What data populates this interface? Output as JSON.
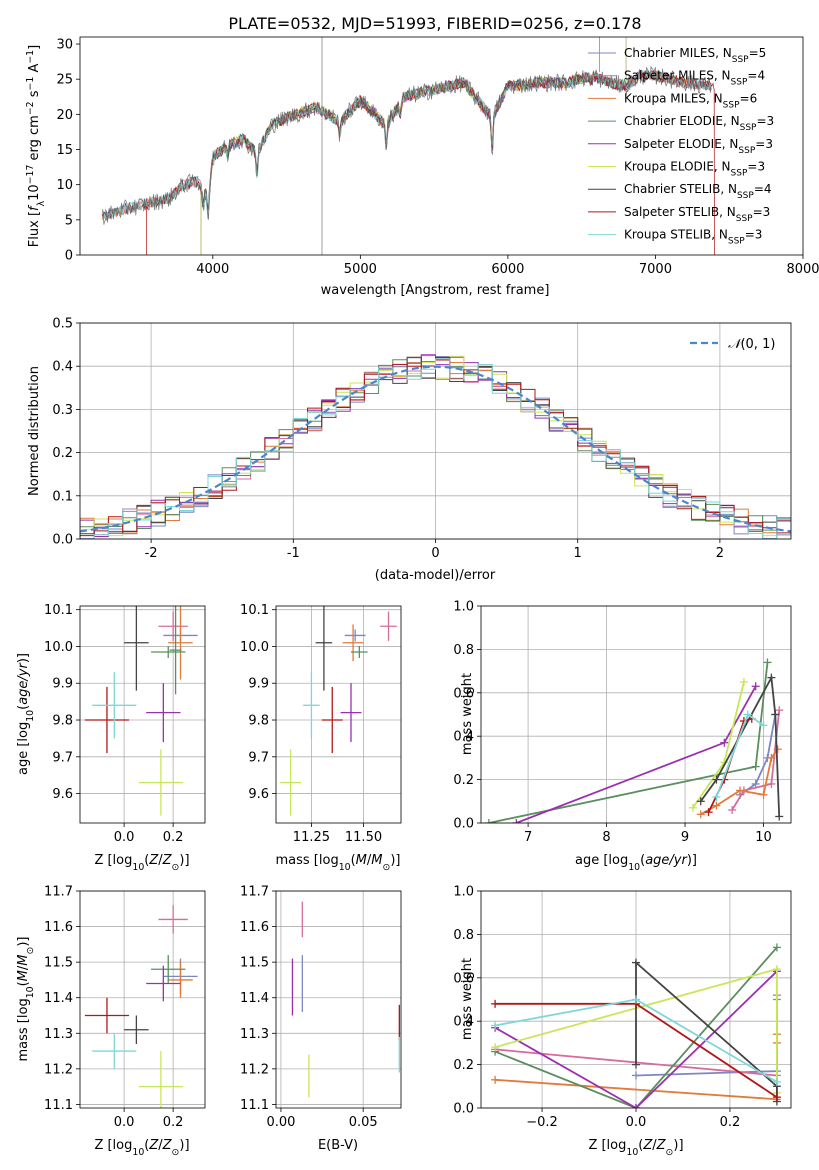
{
  "title": "PLATE=0532, MJD=51993, FIBERID=0256, z=0.178",
  "colors": {
    "Chabrier MILES": "#7b88c4",
    "Salpeter MILES": "#d66c9c",
    "Kroupa MILES": "#e07b39",
    "Chabrier ELODIE": "#5b8f5f",
    "Salpeter ELODIE": "#9a30b0",
    "Kroupa ELODIE": "#c8e65a",
    "Chabrier STELIB": "#444444",
    "Salpeter STELIB": "#b01818",
    "Kroupa STELIB": "#7fd6d6",
    "data": "#666666",
    "normal": "#4a86d0"
  },
  "chart_data": [
    {
      "type": "line",
      "xlabel": "wavelength [Angstrom, rest frame]",
      "ylabel": "Flux [f_λ10^-17 erg cm^-2 s^-1 A^-1]",
      "xlim": [
        3100,
        8000
      ],
      "ylim": [
        0,
        31
      ],
      "xticks": [
        4000,
        5000,
        6000,
        7000,
        8000
      ],
      "yticks": [
        0,
        5,
        10,
        15,
        20,
        25,
        30
      ],
      "grid": false,
      "legend_position": "right",
      "legend": [
        {
          "label": "Chabrier MILES, N_SSP=5",
          "base": "Chabrier MILES, N",
          "sub": "SSP",
          "tail": "=5"
        },
        {
          "label": "Salpeter MILES, N_SSP=4",
          "base": "Salpeter MILES, N",
          "sub": "SSP",
          "tail": "=4"
        },
        {
          "label": "Kroupa MILES, N_SSP=6",
          "base": "Kroupa MILES, N",
          "sub": "SSP",
          "tail": "=6"
        },
        {
          "label": "Chabrier ELODIE, N_SSP=3",
          "base": "Chabrier ELODIE, N",
          "sub": "SSP",
          "tail": "=3"
        },
        {
          "label": "Salpeter ELODIE, N_SSP=3",
          "base": "Salpeter ELODIE, N",
          "sub": "SSP",
          "tail": "=3"
        },
        {
          "label": "Kroupa ELODIE, N_SSP=3",
          "base": "Kroupa ELODIE, N",
          "sub": "SSP",
          "tail": "=3"
        },
        {
          "label": "Chabrier STELIB, N_SSP=4",
          "base": "Chabrier STELIB, N",
          "sub": "SSP",
          "tail": "=4"
        },
        {
          "label": "Salpeter STELIB, N_SSP=3",
          "base": "Salpeter STELIB, N",
          "sub": "SSP",
          "tail": "=3"
        },
        {
          "label": "Kroupa STELIB, N_SSP=3",
          "base": "Kroupa STELIB, N",
          "sub": "SSP",
          "tail": "=3"
        }
      ],
      "spectrum_anchor_points": {
        "x": [
          3250,
          3400,
          3500,
          3600,
          3700,
          3800,
          3900,
          3970,
          4000,
          4100,
          4200,
          4300,
          4400,
          4500,
          4700,
          4861,
          5000,
          5175,
          5300,
          5500,
          5700,
          5893,
          6000,
          6200,
          6400,
          6563,
          6700,
          6800,
          6900,
          7000,
          7200,
          7400
        ],
        "y": [
          5.5,
          6.5,
          7,
          7.5,
          8,
          10,
          10.5,
          8,
          14,
          15.5,
          16.5,
          14.5,
          18.5,
          19.5,
          21,
          19,
          22,
          18.5,
          22.5,
          23.5,
          24.5,
          19.5,
          24,
          24.5,
          24.5,
          25.5,
          24.5,
          24,
          25.5,
          25.5,
          24.5,
          24
        ]
      },
      "model_cutoffs": {
        "Salpeter STELIB": [
          3550,
          7400
        ],
        "Kroupa ELODIE": [
          3920,
          6800
        ],
        "Chabrier ELODIE": [
          3920,
          6800
        ],
        "Salpeter ELODIE": [
          3920,
          6800
        ],
        "Chabrier STELIB": [
          3250,
          7380
        ],
        "Kroupa STELIB": [
          3250,
          7380
        ]
      }
    },
    {
      "type": "histogram",
      "xlabel": "(data-model)/error",
      "ylabel": "Normed distribution",
      "xlim": [
        -2.5,
        2.5
      ],
      "ylim": [
        0,
        0.5
      ],
      "xticks": [
        -2,
        -1,
        0,
        1,
        2
      ],
      "yticks": [
        0.0,
        0.1,
        0.2,
        0.3,
        0.4,
        0.5
      ],
      "grid": true,
      "legend": [
        "N(0,1)"
      ],
      "legend_position": "top-right",
      "bin_width": 0.1,
      "curve": "normal(0,1)"
    },
    {
      "type": "scatter",
      "xlabel": "Z [log10(Z/Z_sun)]",
      "ylabel": "age [log10(age/yr)]",
      "xlim": [
        -0.18,
        0.33
      ],
      "ylim": [
        9.52,
        10.11
      ],
      "xticks": [
        0.0,
        0.2
      ],
      "yticks": [
        9.6,
        9.7,
        9.8,
        9.9,
        10.0,
        10.1
      ],
      "grid": true,
      "points": [
        {
          "series": "Chabrier MILES",
          "x": 0.23,
          "y": 10.03,
          "dx": 0.07,
          "dy": 0.0
        },
        {
          "series": "Salpeter MILES",
          "x": 0.2,
          "y": 10.055,
          "dx": 0.06,
          "dy": 0.04
        },
        {
          "series": "Kroupa MILES",
          "x": 0.23,
          "y": 10.01,
          "dx": 0.05,
          "dy": 0.1
        },
        {
          "series": "Chabrier ELODIE",
          "x": 0.18,
          "y": 9.985,
          "dx": 0.07,
          "dy": 0.0
        },
        {
          "series": "Salpeter ELODIE",
          "x": 0.16,
          "y": 9.82,
          "dx": 0.07,
          "dy": 0.08
        },
        {
          "series": "Kroupa ELODIE",
          "x": 0.15,
          "y": 9.63,
          "dx": 0.09,
          "dy": 0.09
        },
        {
          "series": "Chabrier STELIB",
          "x": 0.05,
          "y": 10.01,
          "dx": 0.05,
          "dy": 0.13
        },
        {
          "series": "Salpeter STELIB",
          "x": -0.07,
          "y": 9.8,
          "dx": 0.09,
          "dy": 0.09
        },
        {
          "series": "Kroupa STELIB",
          "x": -0.04,
          "y": 9.84,
          "dx": 0.09,
          "dy": 0.09
        },
        {
          "series": "Chabrier ELODIE",
          "x": 0.21,
          "y": 9.99,
          "dx": 0.0,
          "dy": 0.12
        }
      ]
    },
    {
      "type": "scatter",
      "xlabel": "mass [log10(M/M_sun)]",
      "xlim": [
        11.08,
        11.68
      ],
      "ylim": [
        9.52,
        10.11
      ],
      "xticks": [
        11.25,
        11.5
      ],
      "yticks": [
        9.6,
        9.7,
        9.8,
        9.9,
        10.0,
        10.1
      ],
      "grid": true,
      "points": [
        {
          "series": "Chabrier MILES",
          "x": 11.46,
          "y": 10.03,
          "dx": 0.05,
          "dy": 0.0
        },
        {
          "series": "Salpeter MILES",
          "x": 11.62,
          "y": 10.055,
          "dx": 0.04,
          "dy": 0.04
        },
        {
          "series": "Kroupa MILES",
          "x": 11.45,
          "y": 10.01,
          "dx": 0.05,
          "dy": 0.05
        },
        {
          "series": "Chabrier ELODIE",
          "x": 11.48,
          "y": 9.985,
          "dx": 0.04,
          "dy": 0.0
        },
        {
          "series": "Salpeter ELODIE",
          "x": 11.44,
          "y": 9.82,
          "dx": 0.05,
          "dy": 0.08
        },
        {
          "series": "Kroupa ELODIE",
          "x": 11.15,
          "y": 9.63,
          "dx": 0.05,
          "dy": 0.09
        },
        {
          "series": "Chabrier STELIB",
          "x": 11.31,
          "y": 10.01,
          "dx": 0.04,
          "dy": 0.13
        },
        {
          "series": "Salpeter STELIB",
          "x": 11.35,
          "y": 9.8,
          "dx": 0.05,
          "dy": 0.09
        },
        {
          "series": "Kroupa STELIB",
          "x": 11.25,
          "y": 9.84,
          "dx": 0.04,
          "dy": 0.09
        }
      ]
    },
    {
      "type": "line",
      "xlabel": "age [log10(age/yr)]",
      "ylabel": "mass weight",
      "xlim": [
        6.4,
        10.35
      ],
      "ylim": [
        0,
        1.0
      ],
      "xticks": [
        7,
        8,
        9,
        10
      ],
      "yticks": [
        0.0,
        0.2,
        0.4,
        0.6,
        0.8,
        1.0
      ],
      "grid": true,
      "series": [
        {
          "name": "Chabrier MILES",
          "x": [
            9.7,
            9.9,
            10.05,
            10.15
          ],
          "y": [
            0.13,
            0.18,
            0.3,
            0.5
          ]
        },
        {
          "name": "Salpeter MILES",
          "x": [
            9.6,
            9.75,
            10.1,
            10.2
          ],
          "y": [
            0.06,
            0.15,
            0.18,
            0.52
          ]
        },
        {
          "name": "Kroupa MILES",
          "x": [
            9.2,
            9.4,
            9.7,
            10.0,
            10.1,
            10.18
          ],
          "y": [
            0.04,
            0.08,
            0.15,
            0.13,
            0.3,
            0.34
          ]
        },
        {
          "name": "Chabrier ELODIE",
          "x": [
            6.5,
            9.9,
            10.05
          ],
          "y": [
            0.0,
            0.26,
            0.74
          ]
        },
        {
          "name": "Salpeter ELODIE",
          "x": [
            6.85,
            9.5,
            9.9
          ],
          "y": [
            0.0,
            0.37,
            0.63
          ]
        },
        {
          "name": "Kroupa ELODIE",
          "x": [
            9.1,
            9.5,
            9.75
          ],
          "y": [
            0.07,
            0.28,
            0.65
          ]
        },
        {
          "name": "Chabrier STELIB",
          "x": [
            9.2,
            9.4,
            10.1,
            10.15,
            10.2
          ],
          "y": [
            0.1,
            0.2,
            0.67,
            0.5,
            0.03
          ]
        },
        {
          "name": "Salpeter STELIB",
          "x": [
            9.3,
            9.5,
            9.75,
            9.85
          ],
          "y": [
            0.05,
            0.2,
            0.47,
            0.48
          ]
        },
        {
          "name": "Kroupa STELIB",
          "x": [
            9.4,
            9.8,
            10.0
          ],
          "y": [
            0.12,
            0.5,
            0.45
          ]
        }
      ]
    },
    {
      "type": "scatter",
      "xlabel": "Z [log10(Z/Z_sun)]",
      "ylabel": "mass [log10(M/M_sun)]",
      "xlim": [
        -0.18,
        0.33
      ],
      "ylim": [
        11.09,
        11.7
      ],
      "xticks": [
        0.0,
        0.2
      ],
      "yticks": [
        11.1,
        11.2,
        11.3,
        11.4,
        11.5,
        11.6,
        11.7
      ],
      "grid": true,
      "points": [
        {
          "series": "Chabrier MILES",
          "x": 0.23,
          "y": 11.46,
          "dx": 0.07,
          "dy": 0.05
        },
        {
          "series": "Salpeter MILES",
          "x": 0.2,
          "y": 11.62,
          "dx": 0.06,
          "dy": 0.04
        },
        {
          "series": "Kroupa MILES",
          "x": 0.23,
          "y": 11.45,
          "dx": 0.05,
          "dy": 0.05
        },
        {
          "series": "Chabrier ELODIE",
          "x": 0.18,
          "y": 11.48,
          "dx": 0.07,
          "dy": 0.04
        },
        {
          "series": "Salpeter ELODIE",
          "x": 0.16,
          "y": 11.44,
          "dx": 0.07,
          "dy": 0.05
        },
        {
          "series": "Kroupa ELODIE",
          "x": 0.15,
          "y": 11.15,
          "dx": 0.09,
          "dy": 0.1
        },
        {
          "series": "Chabrier STELIB",
          "x": 0.05,
          "y": 11.31,
          "dx": 0.05,
          "dy": 0.04
        },
        {
          "series": "Salpeter STELIB",
          "x": -0.07,
          "y": 11.35,
          "dx": 0.09,
          "dy": 0.05
        },
        {
          "series": "Kroupa STELIB",
          "x": -0.04,
          "y": 11.25,
          "dx": 0.09,
          "dy": 0.05
        }
      ]
    },
    {
      "type": "scatter",
      "xlabel": "E(B-V)",
      "xlim": [
        -0.003,
        0.073
      ],
      "ylim": [
        11.09,
        11.7
      ],
      "xticks": [
        0.0,
        0.05
      ],
      "yticks": [
        11.1,
        11.2,
        11.3,
        11.4,
        11.5,
        11.6,
        11.7
      ],
      "grid": true,
      "points": [
        {
          "series": "Chabrier MILES",
          "x": 0.013,
          "y": 11.44,
          "dx": 0.0,
          "dy": 0.08
        },
        {
          "series": "Salpeter MILES",
          "x": 0.013,
          "y": 11.62,
          "dx": 0.0,
          "dy": 0.05
        },
        {
          "series": "Salpeter ELODIE",
          "x": 0.007,
          "y": 11.43,
          "dx": 0.0,
          "dy": 0.08
        },
        {
          "series": "Kroupa ELODIE",
          "x": 0.017,
          "y": 11.18,
          "dx": 0.0,
          "dy": 0.06
        },
        {
          "series": "Salpeter STELIB",
          "x": 0.072,
          "y": 11.33,
          "dx": 0.0,
          "dy": 0.05
        },
        {
          "series": "Kroupa STELIB",
          "x": 0.072,
          "y": 11.24,
          "dx": 0.0,
          "dy": 0.05
        }
      ]
    },
    {
      "type": "line",
      "xlabel": "Z [log10(Z/Z_sun)]",
      "ylabel": "mass weight",
      "xlim": [
        -0.33,
        0.33
      ],
      "ylim": [
        0,
        1.0
      ],
      "xticks": [
        -0.2,
        0.0,
        0.2
      ],
      "yticks": [
        0.0,
        0.2,
        0.4,
        0.6,
        0.8,
        1.0
      ],
      "grid": true,
      "series": [
        {
          "name": "Chabrier MILES",
          "x": [
            0.0,
            0.3,
            0.3
          ],
          "y": [
            0.15,
            0.17,
            0.5
          ]
        },
        {
          "name": "Salpeter MILES",
          "x": [
            -0.3,
            0.3,
            0.3
          ],
          "y": [
            0.27,
            0.15,
            0.52
          ]
        },
        {
          "name": "Kroupa MILES",
          "x": [
            -0.3,
            0.3,
            0.3,
            0.3
          ],
          "y": [
            0.13,
            0.04,
            0.3,
            0.34
          ]
        },
        {
          "name": "Chabrier ELODIE",
          "x": [
            -0.3,
            0.0,
            0.3
          ],
          "y": [
            0.26,
            0.0,
            0.74
          ]
        },
        {
          "name": "Salpeter ELODIE",
          "x": [
            -0.3,
            0.0,
            0.3
          ],
          "y": [
            0.37,
            0.0,
            0.63
          ]
        },
        {
          "name": "Kroupa ELODIE",
          "x": [
            -0.3,
            0.3,
            0.3
          ],
          "y": [
            0.28,
            0.64,
            0.07
          ]
        },
        {
          "name": "Chabrier STELIB",
          "x": [
            0.0,
            0.0,
            0.3,
            0.3
          ],
          "y": [
            0.2,
            0.67,
            0.1,
            0.03
          ]
        },
        {
          "name": "Salpeter STELIB",
          "x": [
            -0.3,
            0.0,
            0.3
          ],
          "y": [
            0.48,
            0.48,
            0.05
          ]
        },
        {
          "name": "Kroupa STELIB",
          "x": [
            -0.3,
            0.0,
            0.3
          ],
          "y": [
            0.38,
            0.5,
            0.12
          ]
        }
      ]
    }
  ]
}
